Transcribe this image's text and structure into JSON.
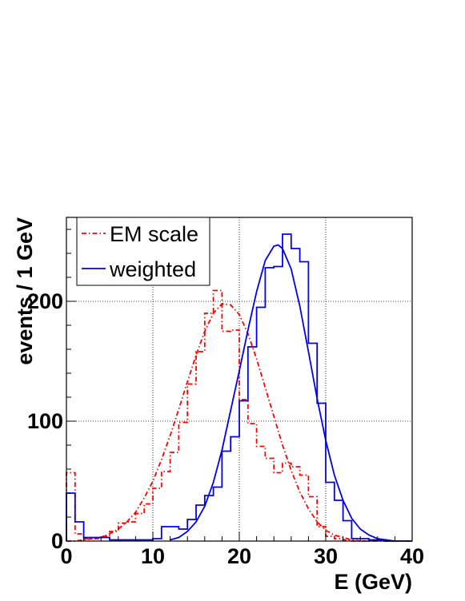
{
  "chart_data": {
    "type": "line",
    "xlabel": "E (GeV)",
    "ylabel": "events / 1 GeV",
    "xlim": [
      0,
      40
    ],
    "ylim": [
      0,
      270
    ],
    "x_ticks": [
      0,
      10,
      20,
      30,
      40
    ],
    "x_tick_labels": [
      "0",
      "10",
      "20",
      "30",
      "40"
    ],
    "y_ticks": [
      0,
      100,
      200
    ],
    "y_tick_labels": [
      "0",
      "100",
      "200"
    ],
    "grid": true,
    "legend_position": "top-left",
    "colors": {
      "em": "#ff0000",
      "weighted": "#0000ee"
    },
    "series": [
      {
        "name": "EM scale",
        "kind": "histogram",
        "line_style": "dash-dot",
        "color": "#ff0000",
        "bin_width": 1,
        "bin_start": 0,
        "values": [
          57,
          6,
          2,
          2,
          4,
          8,
          15,
          16,
          23,
          31,
          44,
          58,
          74,
          99,
          131,
          158,
          190,
          209,
          175,
          176,
          118,
          98,
          79,
          69,
          57,
          65,
          62,
          55,
          37,
          12,
          4,
          2,
          1,
          0,
          0,
          0,
          0,
          0,
          0,
          0
        ]
      },
      {
        "name": "EM scale fit",
        "kind": "curve",
        "line_style": "dash-dot",
        "color": "#ff0000",
        "x": [
          0,
          1,
          2,
          3,
          4,
          5,
          6,
          7,
          8,
          9,
          10,
          11,
          12,
          13,
          14,
          15,
          16,
          17,
          18,
          19,
          20,
          21,
          22,
          23,
          24,
          25,
          26,
          27,
          28,
          29,
          30,
          31,
          32,
          33,
          34,
          35
        ],
        "y": [
          0,
          0,
          1,
          2,
          3,
          6,
          10,
          16,
          24,
          36,
          50,
          68,
          88,
          110,
          133,
          155,
          175,
          190,
          198,
          197,
          189,
          173,
          152,
          128,
          104,
          80,
          59,
          41,
          27,
          16,
          9,
          5,
          3,
          1,
          0,
          0
        ]
      },
      {
        "name": "weighted",
        "kind": "histogram",
        "line_style": "solid",
        "color": "#0000ee",
        "bin_width": 1,
        "bin_start": 0,
        "values": [
          40,
          16,
          3,
          3,
          3,
          1,
          1,
          1,
          1,
          1,
          2,
          12,
          12,
          10,
          18,
          30,
          38,
          45,
          75,
          87,
          117,
          162,
          195,
          228,
          229,
          256,
          244,
          233,
          165,
          115,
          49,
          34,
          17,
          2,
          2,
          1,
          1,
          0,
          0,
          0
        ]
      },
      {
        "name": "weighted fit",
        "kind": "curve",
        "line_style": "solid",
        "color": "#0000ee",
        "x": [
          12,
          13,
          14,
          15,
          16,
          17,
          18,
          19,
          20,
          21,
          22,
          23,
          24,
          24.5,
          25,
          26,
          27,
          28,
          29,
          30,
          31,
          32,
          33,
          34,
          35,
          36,
          37,
          38
        ],
        "y": [
          1,
          3,
          8,
          16,
          29,
          49,
          76,
          109,
          142,
          176,
          208,
          234,
          246,
          247,
          244,
          227,
          196,
          158,
          119,
          84,
          55,
          34,
          19,
          10,
          5,
          2,
          1,
          0
        ]
      }
    ],
    "legend": [
      {
        "label": "EM scale",
        "series": "EM scale"
      },
      {
        "label": "weighted",
        "series": "weighted"
      }
    ]
  }
}
